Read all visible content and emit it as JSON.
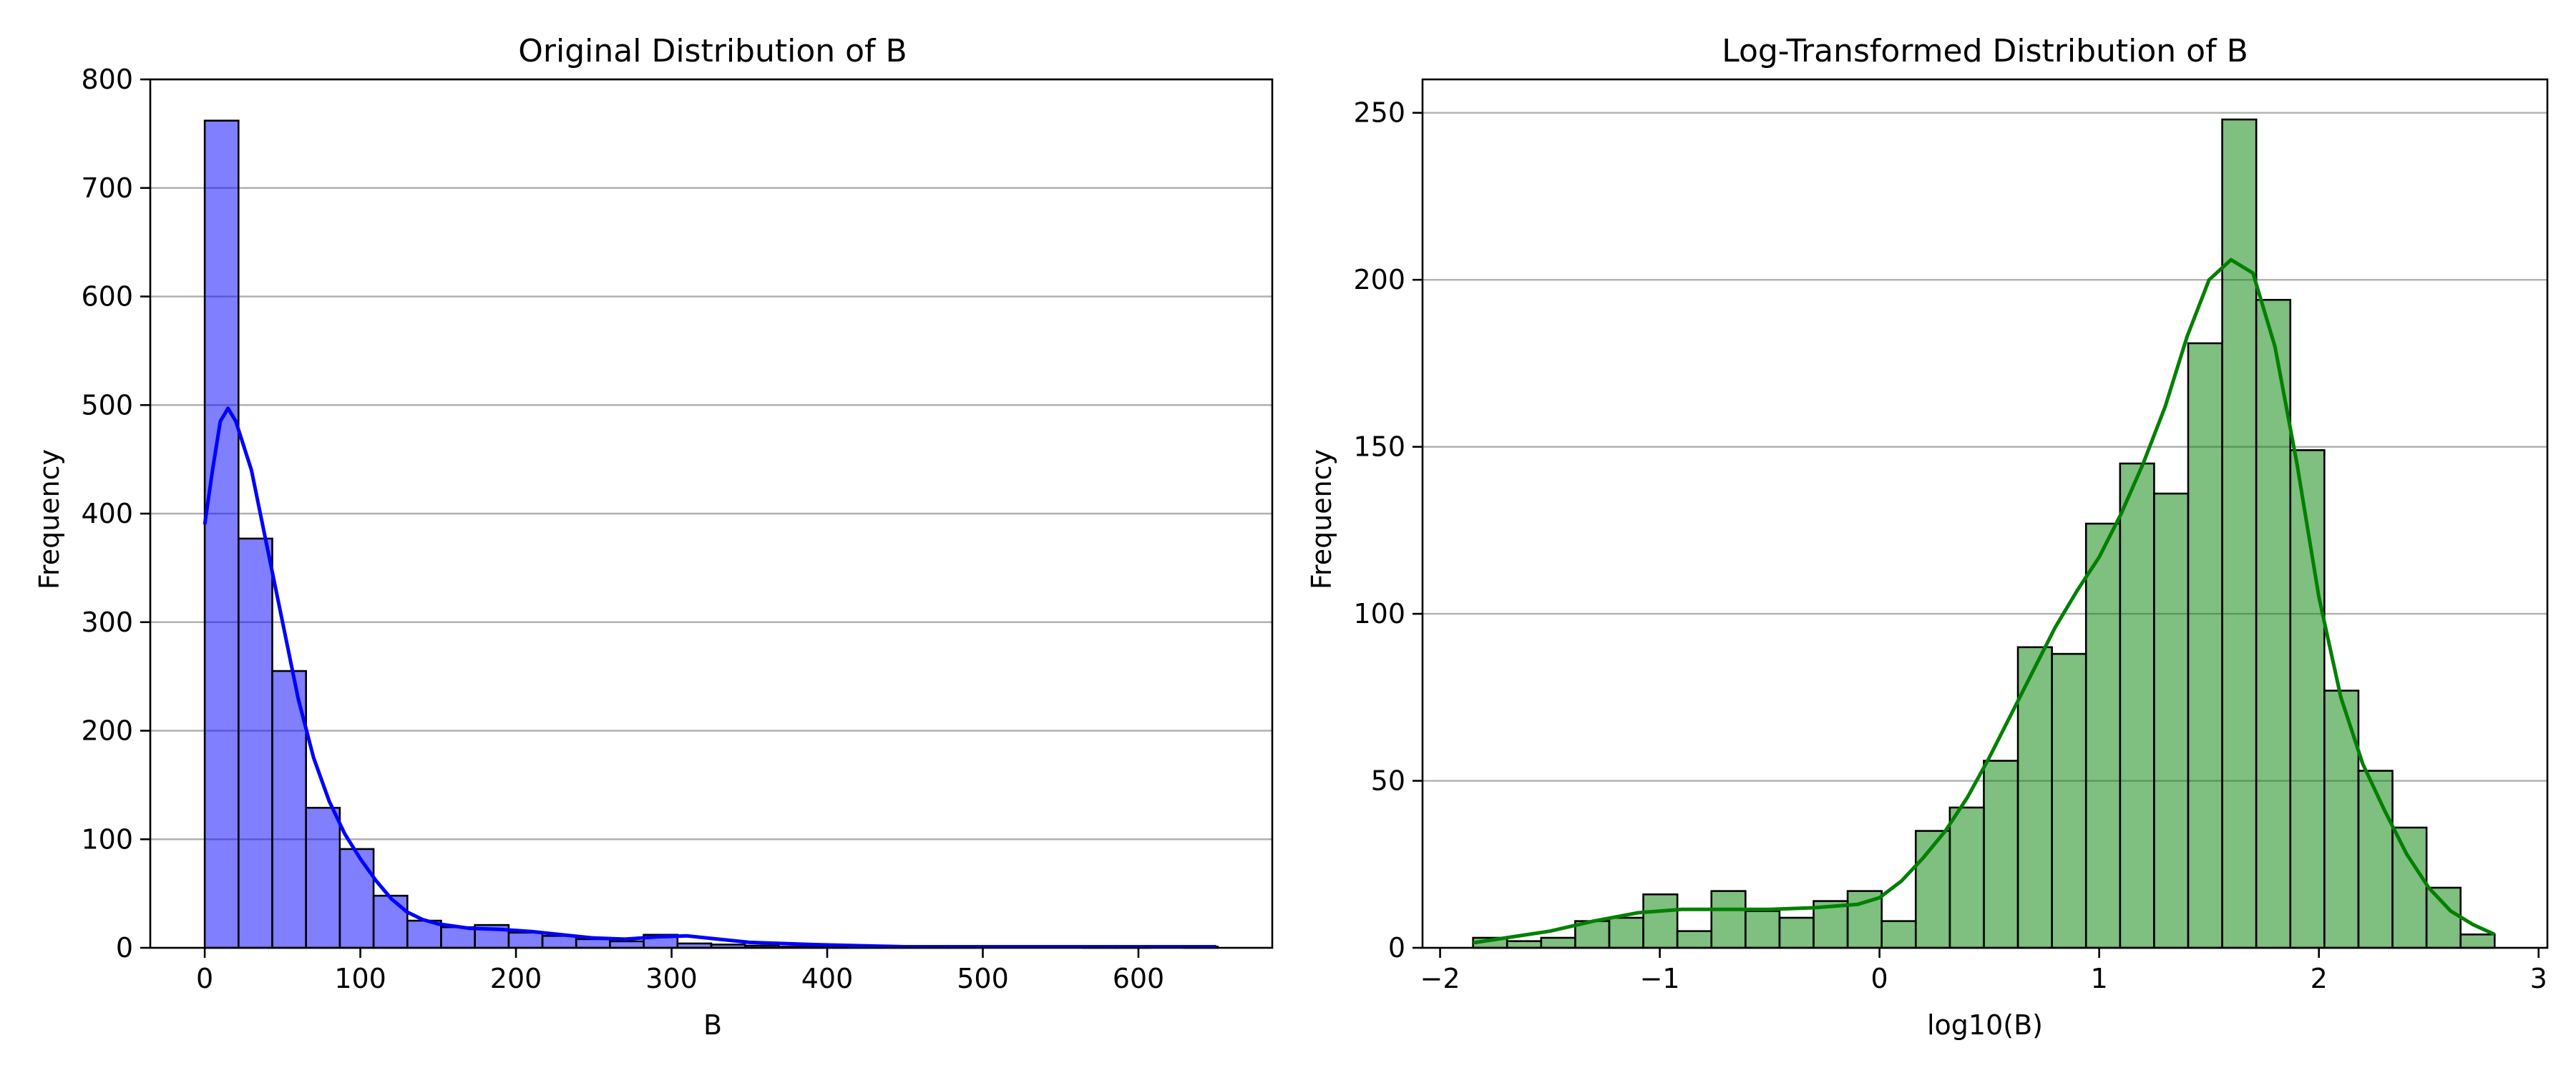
{
  "chart_data": [
    {
      "type": "histogram",
      "title": "Original Distribution of B",
      "xlabel": "B",
      "ylabel": "Frequency",
      "xlim": [
        -35,
        686
      ],
      "ylim": [
        0,
        800
      ],
      "xticks": [
        0,
        100,
        200,
        300,
        400,
        500,
        600
      ],
      "yticks": [
        0,
        100,
        200,
        300,
        400,
        500,
        600,
        700,
        800
      ],
      "grid": "y",
      "color": "#0000ff",
      "bins": {
        "start": 0,
        "width": 21.7
      },
      "counts": [
        762,
        377,
        255,
        129,
        91,
        48,
        25,
        19,
        21,
        14,
        11,
        8,
        6,
        12,
        4,
        3,
        2,
        1,
        1,
        1,
        1,
        1,
        1,
        0,
        0,
        0,
        1,
        1,
        0,
        1
      ],
      "kde": [
        [
          0,
          390
        ],
        [
          5,
          440
        ],
        [
          10,
          485
        ],
        [
          15,
          497
        ],
        [
          20,
          485
        ],
        [
          30,
          440
        ],
        [
          40,
          370
        ],
        [
          50,
          300
        ],
        [
          60,
          230
        ],
        [
          70,
          175
        ],
        [
          80,
          135
        ],
        [
          90,
          105
        ],
        [
          100,
          82
        ],
        [
          110,
          62
        ],
        [
          120,
          45
        ],
        [
          130,
          33
        ],
        [
          140,
          26
        ],
        [
          150,
          22
        ],
        [
          170,
          18
        ],
        [
          190,
          17
        ],
        [
          210,
          15
        ],
        [
          230,
          12
        ],
        [
          250,
          9
        ],
        [
          270,
          8
        ],
        [
          290,
          10
        ],
        [
          310,
          11
        ],
        [
          330,
          8
        ],
        [
          350,
          5
        ],
        [
          370,
          4
        ],
        [
          390,
          3
        ],
        [
          420,
          2
        ],
        [
          450,
          1
        ],
        [
          500,
          1
        ],
        [
          550,
          1
        ],
        [
          600,
          1
        ],
        [
          650,
          1
        ]
      ]
    },
    {
      "type": "histogram",
      "title": "Log-Transformed Distribution of B",
      "xlabel": "log10(B)",
      "ylabel": "Frequency",
      "xlim": [
        -2.08,
        3.04
      ],
      "ylim": [
        0,
        260
      ],
      "xticks": [
        -2,
        -1,
        0,
        1,
        2,
        3
      ],
      "yticks": [
        0,
        50,
        100,
        150,
        200,
        250
      ],
      "grid": "y",
      "color": "#008000",
      "bins": {
        "start": -1.85,
        "width": 0.155
      },
      "counts": [
        3,
        2,
        3,
        8,
        9,
        16,
        5,
        17,
        11,
        9,
        14,
        17,
        8,
        35,
        42,
        56,
        90,
        88,
        127,
        145,
        136,
        181,
        248,
        194,
        149,
        77,
        53,
        36,
        18,
        4
      ],
      "kde": [
        [
          -1.85,
          1.5
        ],
        [
          -1.7,
          3
        ],
        [
          -1.5,
          5
        ],
        [
          -1.3,
          8
        ],
        [
          -1.1,
          10.5
        ],
        [
          -0.9,
          11.5
        ],
        [
          -0.7,
          11.5
        ],
        [
          -0.5,
          11.5
        ],
        [
          -0.3,
          12
        ],
        [
          -0.1,
          13
        ],
        [
          0.0,
          15
        ],
        [
          0.1,
          20
        ],
        [
          0.2,
          27
        ],
        [
          0.3,
          35
        ],
        [
          0.4,
          45
        ],
        [
          0.5,
          57
        ],
        [
          0.6,
          70
        ],
        [
          0.7,
          83
        ],
        [
          0.8,
          96
        ],
        [
          0.9,
          107
        ],
        [
          1.0,
          117
        ],
        [
          1.1,
          130
        ],
        [
          1.2,
          145
        ],
        [
          1.3,
          162
        ],
        [
          1.4,
          183
        ],
        [
          1.5,
          200
        ],
        [
          1.6,
          206
        ],
        [
          1.7,
          202
        ],
        [
          1.8,
          180
        ],
        [
          1.9,
          145
        ],
        [
          2.0,
          105
        ],
        [
          2.1,
          75
        ],
        [
          2.2,
          55
        ],
        [
          2.3,
          41
        ],
        [
          2.4,
          28
        ],
        [
          2.5,
          18
        ],
        [
          2.6,
          11
        ],
        [
          2.7,
          7
        ],
        [
          2.8,
          4
        ]
      ]
    }
  ]
}
